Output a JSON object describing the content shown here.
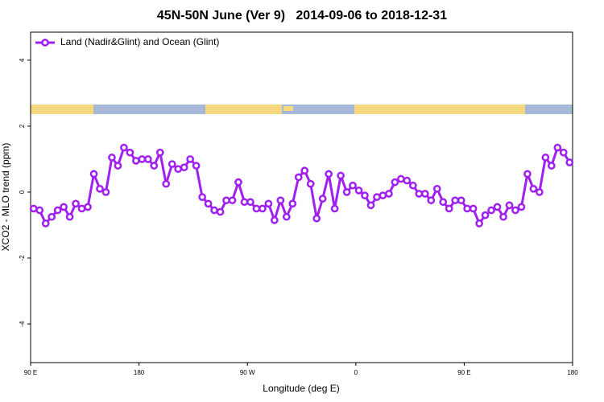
{
  "chart_data": {
    "type": "line",
    "title": "45N-50N June (Ver 9)   2014-09-06 to 2018-12-31",
    "x_label": "Longitude (deg E)",
    "y_label": "XCO2 - MLO trend (ppm)",
    "xlim": [
      90,
      540
    ],
    "ylim": [
      -5.17,
      4.85
    ],
    "xticks": [
      {
        "value": 90,
        "label": "90 E"
      },
      {
        "value": 180,
        "label": "180"
      },
      {
        "value": 270,
        "label": "90 W"
      },
      {
        "value": 360,
        "label": "0"
      },
      {
        "value": 450,
        "label": "90 E"
      },
      {
        "value": 540,
        "label": "180"
      }
    ],
    "yticks": [
      -4,
      -2,
      0,
      2,
      4
    ],
    "legend_position": "top-left",
    "x": [
      92.5,
      97.5,
      102.5,
      107.5,
      112.5,
      117.5,
      122.5,
      127.5,
      132.5,
      137.5,
      142.5,
      147.5,
      152.5,
      157.5,
      162.5,
      167.5,
      172.5,
      177.5,
      182.5,
      187.5,
      192.5,
      197.5,
      202.5,
      207.5,
      212.5,
      217.5,
      222.5,
      227.5,
      232.5,
      237.5,
      242.5,
      247.5,
      252.5,
      257.5,
      262.5,
      267.5,
      272.5,
      277.5,
      282.5,
      287.5,
      292.5,
      297.5,
      302.5,
      307.5,
      312.5,
      317.5,
      322.5,
      327.5,
      332.5,
      337.5,
      342.5,
      347.5,
      352.5,
      357.5,
      362.5,
      367.5,
      372.5,
      377.5,
      382.5,
      387.5,
      392.5,
      397.5,
      402.5,
      407.5,
      412.5,
      417.5,
      422.5,
      427.5,
      432.5,
      437.5,
      442.5,
      447.5,
      452.5,
      457.5,
      462.5,
      467.5,
      472.5,
      477.5,
      482.5,
      487.5,
      492.5,
      497.5,
      502.5,
      507.5,
      512.5,
      517.5,
      522.5,
      527.5,
      532.5,
      537.5
    ],
    "series": [
      {
        "name": "Land (Nadir&Glint) and Ocean (Glint)",
        "color": "#a020f0",
        "values": [
          -0.5,
          -0.55,
          -0.95,
          -0.75,
          -0.55,
          -0.45,
          -0.75,
          -0.35,
          -0.5,
          -0.45,
          0.55,
          0.1,
          0.0,
          1.05,
          0.8,
          1.35,
          1.2,
          0.95,
          1.0,
          1.0,
          0.8,
          1.2,
          0.25,
          0.85,
          0.7,
          0.75,
          1.0,
          0.8,
          -0.15,
          -0.35,
          -0.55,
          -0.6,
          -0.25,
          -0.25,
          0.3,
          -0.3,
          -0.3,
          -0.5,
          -0.5,
          -0.35,
          -0.85,
          -0.25,
          -0.75,
          -0.35,
          0.45,
          0.65,
          0.25,
          -0.8,
          -0.2,
          0.55,
          -0.5,
          0.5,
          0.0,
          0.2,
          0.05,
          -0.1,
          -0.4,
          -0.15,
          -0.1,
          -0.05,
          0.3,
          0.4,
          0.35,
          0.2,
          -0.05,
          -0.05,
          -0.25,
          0.1,
          -0.3,
          -0.5,
          -0.25,
          -0.25,
          -0.5,
          -0.5,
          -0.95,
          -0.7,
          -0.55,
          -0.45,
          -0.75,
          -0.4,
          -0.55,
          -0.45,
          0.55,
          0.1,
          0.0,
          1.05,
          0.8,
          1.35,
          1.2,
          0.9
        ]
      }
    ]
  }
}
